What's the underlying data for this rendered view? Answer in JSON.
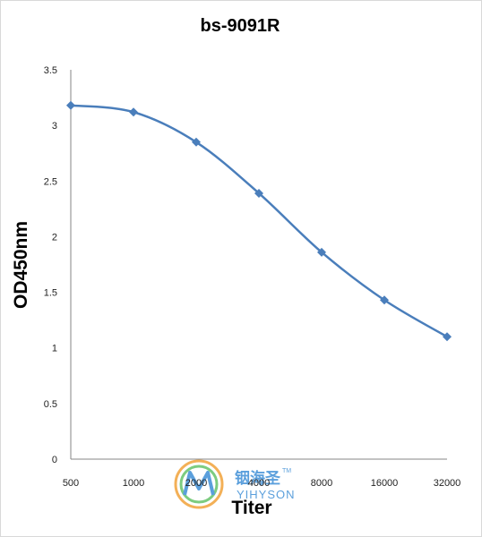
{
  "chart_data": {
    "type": "line",
    "title": "bs-9091R",
    "xlabel": "Titer",
    "ylabel": "OD450nm",
    "categories": [
      "500",
      "1000",
      "2000",
      "4000",
      "8000",
      "16000",
      "32000"
    ],
    "series": [
      {
        "values": [
          3.18,
          3.12,
          2.85,
          2.39,
          1.86,
          1.43,
          1.1
        ]
      }
    ],
    "ylim": [
      0,
      3.5
    ],
    "yticks": [
      "0",
      "0.5",
      "1",
      "1.5",
      "2",
      "2.5",
      "3",
      "3.5"
    ],
    "grid": false,
    "smooth": true,
    "line_color": "#4a7ebb",
    "marker": "diamond"
  },
  "watermark": {
    "cn": "铟海圣",
    "en": "YIHYSON",
    "tm": "TM"
  }
}
